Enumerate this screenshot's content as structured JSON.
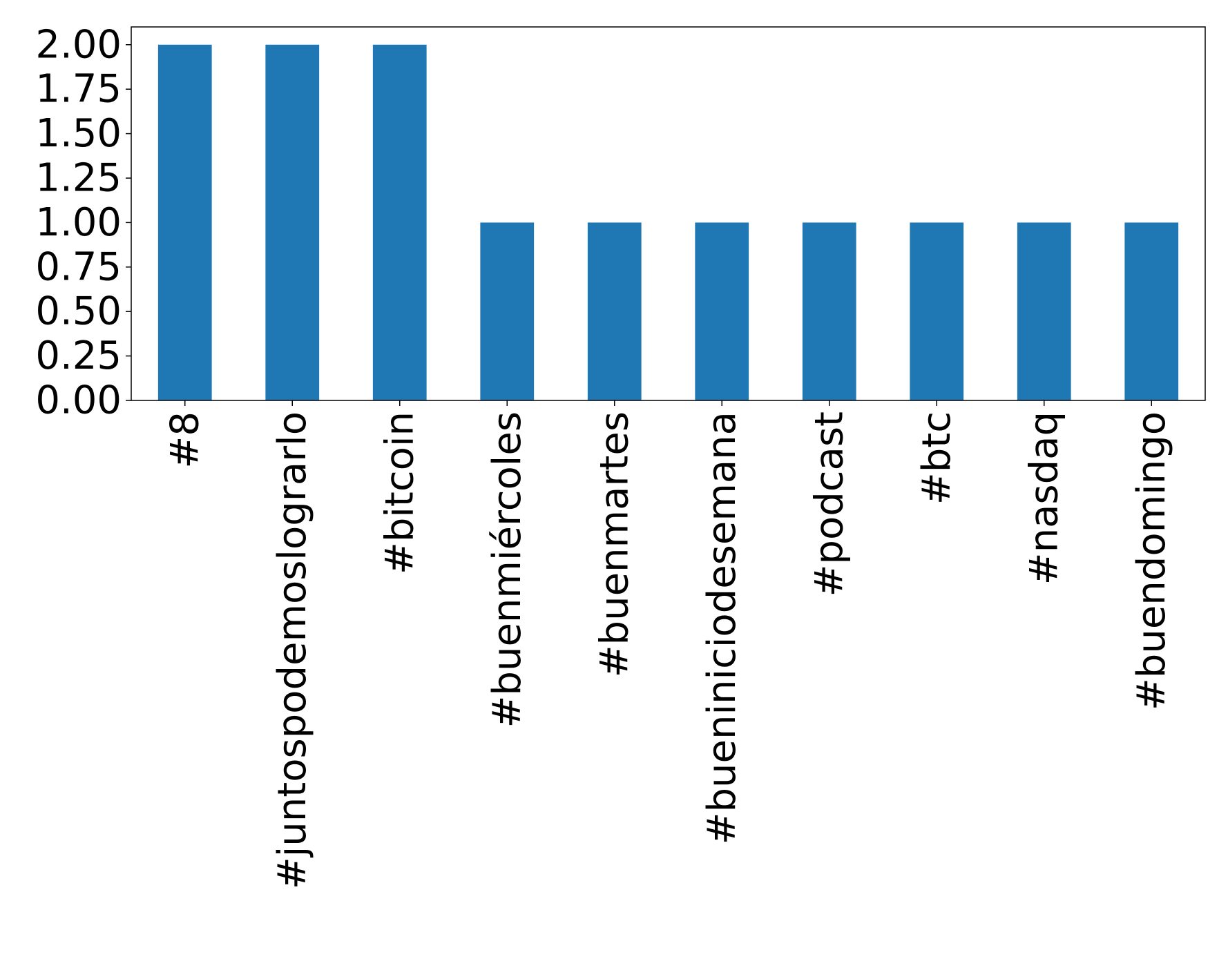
{
  "chart_data": {
    "type": "bar",
    "title": "",
    "xlabel": "",
    "ylabel": "",
    "categories": [
      "#8",
      "#juntospodemoslograrlo",
      "#bitcoin",
      "#buenmiércoles",
      "#buenmartes",
      "#bueniniciodesemana",
      "#podcast",
      "#btc",
      "#nasdaq",
      "#buendomingo"
    ],
    "values": [
      2,
      2,
      2,
      1,
      1,
      1,
      1,
      1,
      1,
      1
    ],
    "ylim": [
      0,
      2.1
    ],
    "yticks": [
      0,
      0.25,
      0.5,
      0.75,
      1.0,
      1.25,
      1.5,
      1.75,
      2.0
    ],
    "ytick_labels": [
      "0.00",
      "0.25",
      "0.50",
      "0.75",
      "1.00",
      "1.25",
      "1.50",
      "1.75",
      "2.00"
    ],
    "bar_color": "#1f77b4",
    "grid": false,
    "legend": "none"
  }
}
